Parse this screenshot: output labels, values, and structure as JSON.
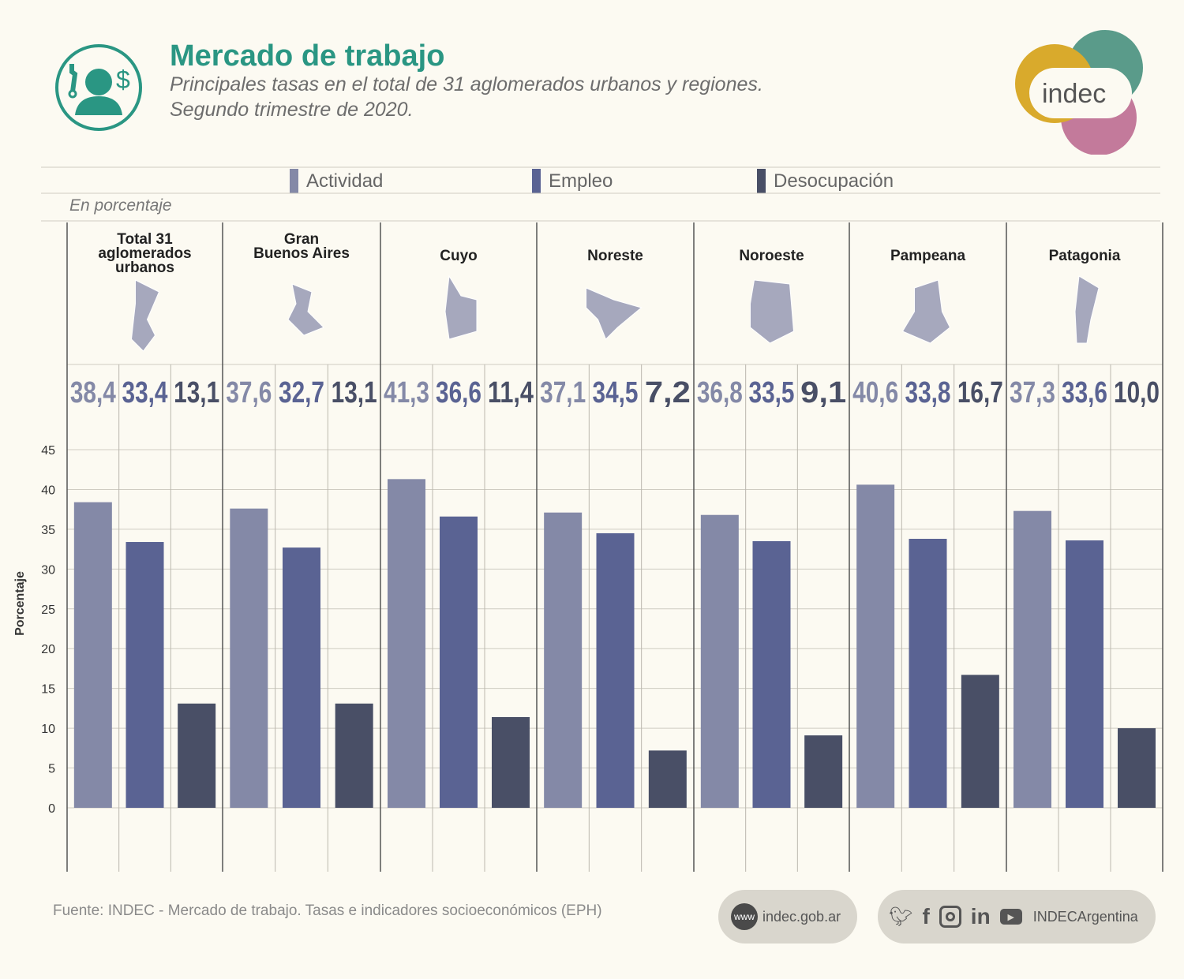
{
  "header": {
    "title": "Mercado de trabajo",
    "subtitle_line1": "Principales tasas en el total de 31 aglomerados urbanos y regiones.",
    "subtitle_line2": "Segundo trimestre de 2020.",
    "icon": "worker-wrench-dollar-icon",
    "logo_text": "indec"
  },
  "legend": [
    {
      "label": "Actividad",
      "color": "#8489a7"
    },
    {
      "label": "Empleo",
      "color": "#5a6393"
    },
    {
      "label": "Desocupación",
      "color": "#494f66"
    }
  ],
  "unit_label": "En porcentaje",
  "chart_data": {
    "type": "bar",
    "ylabel": "Porcentaje",
    "ylim": [
      0,
      45
    ],
    "yticks": [
      0,
      5,
      10,
      15,
      20,
      25,
      30,
      35,
      40,
      45
    ],
    "grid": true,
    "legend_position": "top",
    "categories": [
      "Total 31 aglomerados urbanos",
      "Gran Buenos Aires",
      "Cuyo",
      "Noreste",
      "Noroeste",
      "Pampeana",
      "Patagonia"
    ],
    "category_label_lines": [
      [
        "Total 31",
        "aglomerados",
        "urbanos"
      ],
      [
        "Gran",
        "Buenos Aires"
      ],
      [
        "Cuyo"
      ],
      [
        "Noreste"
      ],
      [
        "Noroeste"
      ],
      [
        "Pampeana"
      ],
      [
        "Patagonia"
      ]
    ],
    "series": [
      {
        "name": "Actividad",
        "color": "#8489a7",
        "values": [
          38.4,
          37.6,
          41.3,
          37.1,
          36.8,
          40.6,
          37.3
        ],
        "labels": [
          "38,4",
          "37,6",
          "41,3",
          "37,1",
          "36,8",
          "40,6",
          "37,3"
        ]
      },
      {
        "name": "Empleo",
        "color": "#5a6393",
        "values": [
          33.4,
          32.7,
          36.6,
          34.5,
          33.5,
          33.8,
          33.6
        ],
        "labels": [
          "33,4",
          "32,7",
          "36,6",
          "34,5",
          "33,5",
          "33,8",
          "33,6"
        ]
      },
      {
        "name": "Desocupación",
        "color": "#494f66",
        "values": [
          13.1,
          13.1,
          11.4,
          7.2,
          9.1,
          16.7,
          10.0
        ],
        "labels": [
          "13,1",
          "13,1",
          "11,4",
          "7,2",
          "9,1",
          "16,7",
          "10,0"
        ]
      }
    ]
  },
  "footer": {
    "source": "Fuente: INDEC - Mercado de trabajo. Tasas e indicadores socioeconómicos (EPH)",
    "website": "indec.gob.ar",
    "www_badge": "www",
    "social_handle": "INDECArgentina",
    "social_icons": [
      "twitter-icon",
      "facebook-icon",
      "instagram-icon",
      "linkedin-icon",
      "youtube-icon"
    ]
  }
}
